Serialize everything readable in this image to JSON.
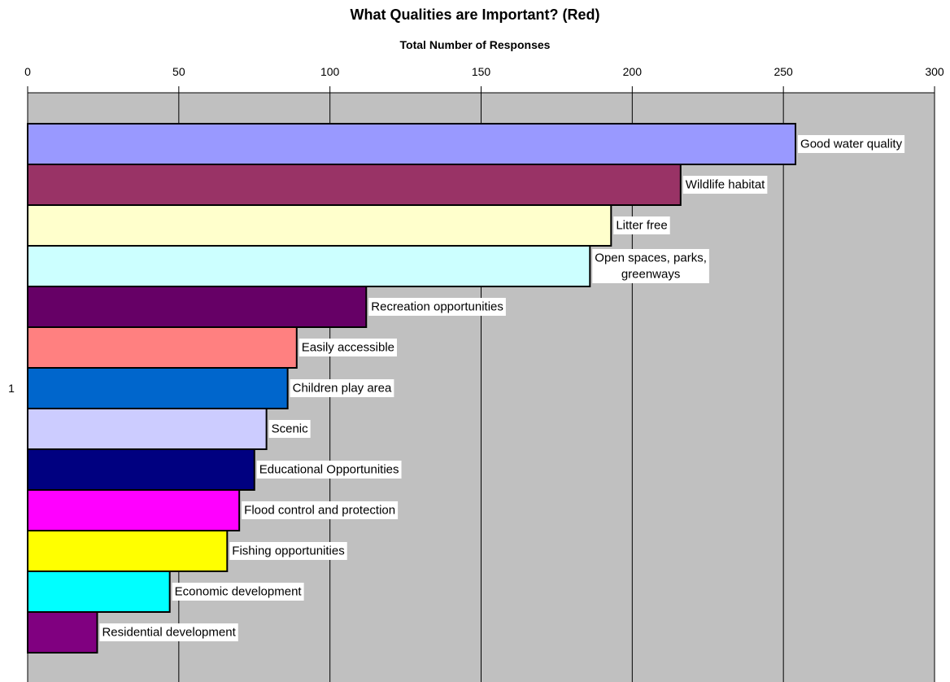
{
  "chart_data": {
    "type": "bar",
    "orientation": "horizontal",
    "title": "What Qualities are Important? (Red)",
    "xlabel": "Total Number of Responses",
    "category_label": "1",
    "xlim": [
      0,
      300
    ],
    "xticks": [
      0,
      50,
      100,
      150,
      200,
      250,
      300
    ],
    "axis_position": "top",
    "grid": true,
    "plot_background": "#c0c0c0",
    "series": [
      {
        "name": "Good water quality",
        "value": 254,
        "color": "#9999ff"
      },
      {
        "name": "Wildlife habitat",
        "value": 216,
        "color": "#993366"
      },
      {
        "name": "Litter free",
        "value": 193,
        "color": "#ffffcc"
      },
      {
        "name": "Open spaces, parks, greenways",
        "value": 186,
        "color": "#ccffff",
        "label_lines": [
          "Open spaces, parks,",
          "greenways"
        ]
      },
      {
        "name": "Recreation opportunities",
        "value": 112,
        "color": "#660066"
      },
      {
        "name": "Easily accessible",
        "value": 89,
        "color": "#ff8080"
      },
      {
        "name": "Children play area",
        "value": 86,
        "color": "#0066cc"
      },
      {
        "name": "Scenic",
        "value": 79,
        "color": "#ccccff"
      },
      {
        "name": "Educational Opportunities",
        "value": 75,
        "color": "#000080"
      },
      {
        "name": "Flood control and protection",
        "value": 70,
        "color": "#ff00ff"
      },
      {
        "name": "Fishing opportunities",
        "value": 66,
        "color": "#ffff00"
      },
      {
        "name": "Economic development",
        "value": 47,
        "color": "#00ffff"
      },
      {
        "name": "Residential development",
        "value": 23,
        "color": "#800080"
      }
    ]
  }
}
